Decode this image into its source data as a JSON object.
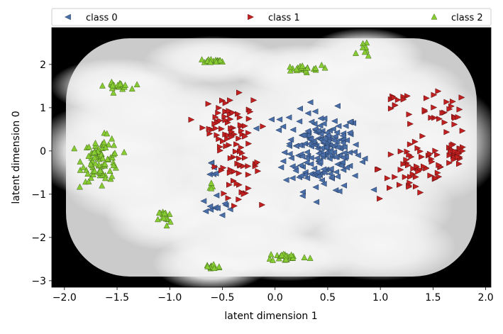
{
  "chart_data": {
    "type": "scatter",
    "title": "",
    "xlabel": "latent dimension 1",
    "ylabel": "latent dimension 0",
    "xlim": [
      -2.12,
      2.05
    ],
    "ylim": [
      -3.15,
      2.85
    ],
    "xticks": [
      -2.0,
      -1.5,
      -1.0,
      -0.5,
      0.0,
      0.5,
      1.0,
      1.5,
      2.0
    ],
    "xtick_labels": [
      "−2.0",
      "−1.5",
      "−1.0",
      "−0.5",
      "0.0",
      "0.5",
      "1.0",
      "1.5",
      "2.0"
    ],
    "yticks": [
      -3,
      -2,
      -1,
      0,
      1,
      2
    ],
    "ytick_labels": [
      "−3",
      "−2",
      "−1",
      "0",
      "1",
      "2"
    ],
    "grid": false,
    "background": "grayscale density map (light at cluster centers, dark at edges)",
    "legend": {
      "placement": "top",
      "ncol": 3,
      "entries": [
        "class 0",
        "class 1",
        "class 2"
      ]
    },
    "series": [
      {
        "name": "class 0",
        "marker": "triangle-left",
        "color": "#4a6fa8",
        "clusters": [
          {
            "cx": 0.45,
            "cy": 0.0,
            "sx": 0.18,
            "sy": 0.45,
            "n": 200
          },
          {
            "cx": -0.55,
            "cy": -1.3,
            "sx": 0.07,
            "sy": 0.12,
            "n": 12
          },
          {
            "cx": -0.6,
            "cy": -0.4,
            "sx": 0.05,
            "sy": 0.15,
            "n": 6
          },
          {
            "cx": 0.05,
            "cy": 0.75,
            "sx": 0.04,
            "sy": 0.03,
            "n": 3
          }
        ]
      },
      {
        "name": "class 1",
        "marker": "triangle-right",
        "color": "#c22020",
        "clusters": [
          {
            "cx": -0.45,
            "cy": 0.65,
            "sx": 0.12,
            "sy": 0.3,
            "n": 55
          },
          {
            "cx": -0.35,
            "cy": -0.35,
            "sx": 0.1,
            "sy": 0.35,
            "n": 45
          },
          {
            "cx": 1.35,
            "cy": -0.4,
            "sx": 0.18,
            "sy": 0.38,
            "n": 55
          },
          {
            "cx": 1.7,
            "cy": -0.1,
            "sx": 0.05,
            "sy": 0.12,
            "n": 25
          },
          {
            "cx": 1.6,
            "cy": 0.85,
            "sx": 0.12,
            "sy": 0.25,
            "n": 25
          },
          {
            "cx": 1.15,
            "cy": 1.1,
            "sx": 0.07,
            "sy": 0.12,
            "n": 10
          }
        ]
      },
      {
        "name": "class 2",
        "marker": "triangle-up",
        "color": "#88cc33",
        "clusters": [
          {
            "cx": -1.65,
            "cy": -0.2,
            "sx": 0.09,
            "sy": 0.25,
            "n": 85
          },
          {
            "cx": -1.5,
            "cy": 1.5,
            "sx": 0.06,
            "sy": 0.04,
            "n": 22
          },
          {
            "cx": -0.6,
            "cy": 2.08,
            "sx": 0.06,
            "sy": 0.02,
            "n": 18
          },
          {
            "cx": 0.24,
            "cy": 1.9,
            "sx": 0.1,
            "sy": 0.04,
            "n": 25
          },
          {
            "cx": 0.85,
            "cy": 2.25,
            "sx": 0.04,
            "sy": 0.15,
            "n": 8
          },
          {
            "cx": -1.05,
            "cy": -1.55,
            "sx": 0.03,
            "sy": 0.1,
            "n": 14
          },
          {
            "cx": -0.6,
            "cy": -0.85,
            "sx": 0.02,
            "sy": 0.12,
            "n": 5
          },
          {
            "cx": -0.6,
            "cy": -2.68,
            "sx": 0.04,
            "sy": 0.04,
            "n": 16
          },
          {
            "cx": 0.12,
            "cy": -2.45,
            "sx": 0.1,
            "sy": 0.05,
            "n": 22
          }
        ]
      }
    ],
    "density_centers": [
      [
        0.45,
        0.0,
        0.55,
        0.8
      ],
      [
        -0.45,
        0.2,
        0.45,
        0.9
      ],
      [
        1.45,
        0.2,
        0.45,
        0.9
      ],
      [
        -1.6,
        0.0,
        0.45,
        0.7
      ],
      [
        -1.5,
        1.5,
        0.4,
        0.4
      ],
      [
        -0.6,
        2.1,
        0.4,
        0.35
      ],
      [
        0.25,
        1.9,
        0.4,
        0.35
      ],
      [
        0.85,
        2.2,
        0.35,
        0.4
      ],
      [
        -1.05,
        -1.5,
        0.35,
        0.5
      ],
      [
        -0.6,
        -2.6,
        0.35,
        0.4
      ],
      [
        0.12,
        -2.45,
        0.4,
        0.35
      ],
      [
        -0.2,
        -1.2,
        0.5,
        0.6
      ],
      [
        0.9,
        -1.3,
        0.5,
        0.6
      ],
      [
        -1.2,
        0.9,
        0.5,
        0.6
      ],
      [
        0.4,
        1.2,
        0.5,
        0.6
      ],
      [
        1.1,
        1.4,
        0.45,
        0.5
      ],
      [
        -1.3,
        -0.7,
        0.45,
        0.6
      ],
      [
        1.0,
        -2.2,
        0.45,
        0.5
      ],
      [
        -0.3,
        -2.0,
        0.45,
        0.5
      ]
    ]
  }
}
